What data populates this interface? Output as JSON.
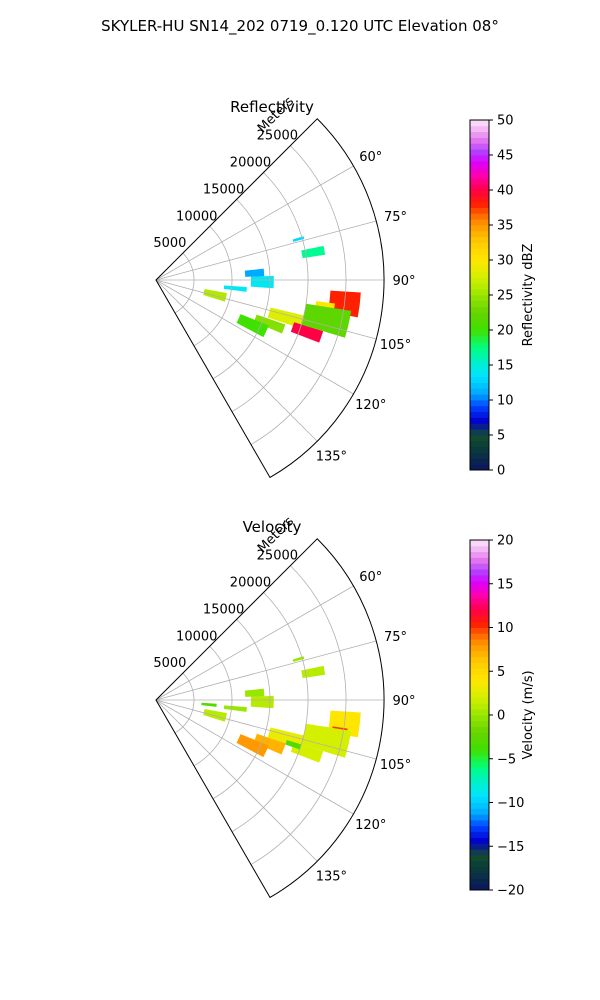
{
  "figure": {
    "title": "SKYLER-HU  SN14_202  0719_0.120 UTC Elevation 08°"
  },
  "chart_data": [
    {
      "type": "heatmap",
      "title": "Reflectivity",
      "projection": "polar-sector",
      "range_label": "Meters",
      "range_ticks": [
        5000,
        10000,
        15000,
        20000,
        25000
      ],
      "range_tick_labels": [
        "5000",
        "10000",
        "15000",
        "20000",
        "25000"
      ],
      "range_max_m": 30000,
      "azimuth_range_deg": [
        45,
        150
      ],
      "azimuth_ticks": [
        60,
        75,
        90,
        105,
        120,
        135
      ],
      "azimuth_tick_labels": [
        "60°",
        "75°",
        "90°",
        "105°",
        "120°",
        "135°"
      ],
      "grid": true,
      "colorbar": {
        "label": "Reflectivity dBZ",
        "range": [
          0,
          50
        ],
        "ticks": [
          0,
          5,
          10,
          15,
          20,
          25,
          30,
          35,
          40,
          45,
          50
        ],
        "tick_labels": [
          "0",
          "5",
          "10",
          "15",
          "20",
          "25",
          "30",
          "35",
          "40",
          "45",
          "50"
        ]
      },
      "echoes": [
        {
          "az": 106,
          "r": 18000,
          "w": 5,
          "dr": 5000,
          "v": 28
        },
        {
          "az": 109,
          "r": 21000,
          "w": 4,
          "dr": 4000,
          "v": 40
        },
        {
          "az": 97,
          "r": 25000,
          "w": 7,
          "dr": 4000,
          "v": 38
        },
        {
          "az": 100,
          "r": 22500,
          "w": 5,
          "dr": 2500,
          "v": 30
        },
        {
          "az": 111,
          "r": 16000,
          "w": 4,
          "dr": 4000,
          "v": 24
        },
        {
          "az": 103,
          "r": 23000,
          "w": 8,
          "dr": 6000,
          "v": 22
        },
        {
          "az": 115,
          "r": 14000,
          "w": 6,
          "dr": 4000,
          "v": 20
        },
        {
          "az": 104,
          "r": 8000,
          "w": 7,
          "dr": 3000,
          "v": 26
        },
        {
          "az": 96,
          "r": 10500,
          "w": 3,
          "dr": 3000,
          "v": 14
        },
        {
          "az": 91,
          "r": 14000,
          "w": 6,
          "dr": 3000,
          "v": 14
        },
        {
          "az": 86,
          "r": 13000,
          "w": 4,
          "dr": 2500,
          "v": 11
        },
        {
          "az": 80,
          "r": 21000,
          "w": 3,
          "dr": 3000,
          "v": 17
        },
        {
          "az": 74,
          "r": 19500,
          "w": 1,
          "dr": 1500,
          "v": 13
        }
      ]
    },
    {
      "type": "heatmap",
      "title": "Velocity",
      "projection": "polar-sector",
      "range_label": "Meters",
      "range_ticks": [
        5000,
        10000,
        15000,
        20000,
        25000
      ],
      "range_tick_labels": [
        "5000",
        "10000",
        "15000",
        "20000",
        "25000"
      ],
      "range_max_m": 30000,
      "azimuth_range_deg": [
        45,
        150
      ],
      "azimuth_ticks": [
        60,
        75,
        90,
        105,
        120,
        135
      ],
      "azimuth_tick_labels": [
        "60°",
        "75°",
        "90°",
        "105°",
        "120°",
        "135°"
      ],
      "grid": true,
      "colorbar": {
        "label": "Velocity (m/s)",
        "range": [
          -20,
          20
        ],
        "ticks": [
          -20,
          -15,
          -10,
          -5,
          0,
          5,
          10,
          15,
          20
        ],
        "tick_labels": [
          "−20",
          "−15",
          "−10",
          "−5",
          "0",
          "5",
          "10",
          "15",
          "20"
        ]
      },
      "echoes": [
        {
          "az": 106,
          "r": 18000,
          "w": 5,
          "dr": 5000,
          "v": 3
        },
        {
          "az": 111,
          "r": 16000,
          "w": 5,
          "dr": 4000,
          "v": 7
        },
        {
          "az": 109,
          "r": 21000,
          "w": 4,
          "dr": 4000,
          "v": 2
        },
        {
          "az": 97,
          "r": 25000,
          "w": 7,
          "dr": 4000,
          "v": 4
        },
        {
          "az": 100,
          "r": 24500,
          "w": 3,
          "dr": 2000,
          "v": 10
        },
        {
          "az": 103,
          "r": 23000,
          "w": 8,
          "dr": 6000,
          "v": 2
        },
        {
          "az": 115,
          "r": 14000,
          "w": 6,
          "dr": 4000,
          "v": 8
        },
        {
          "az": 104,
          "r": 8000,
          "w": 7,
          "dr": 3000,
          "v": 1
        },
        {
          "az": 96,
          "r": 10500,
          "w": 3,
          "dr": 3000,
          "v": 0
        },
        {
          "az": 91,
          "r": 14000,
          "w": 6,
          "dr": 3000,
          "v": 1
        },
        {
          "az": 86,
          "r": 13000,
          "w": 4,
          "dr": 2500,
          "v": 0
        },
        {
          "az": 95,
          "r": 7000,
          "w": 3,
          "dr": 2000,
          "v": -3
        },
        {
          "az": 80,
          "r": 21000,
          "w": 3,
          "dr": 3000,
          "v": 1
        },
        {
          "az": 108,
          "r": 19000,
          "w": 2,
          "dr": 2000,
          "v": -3
        },
        {
          "az": 74,
          "r": 19500,
          "w": 1,
          "dr": 1500,
          "v": 0
        }
      ]
    }
  ]
}
